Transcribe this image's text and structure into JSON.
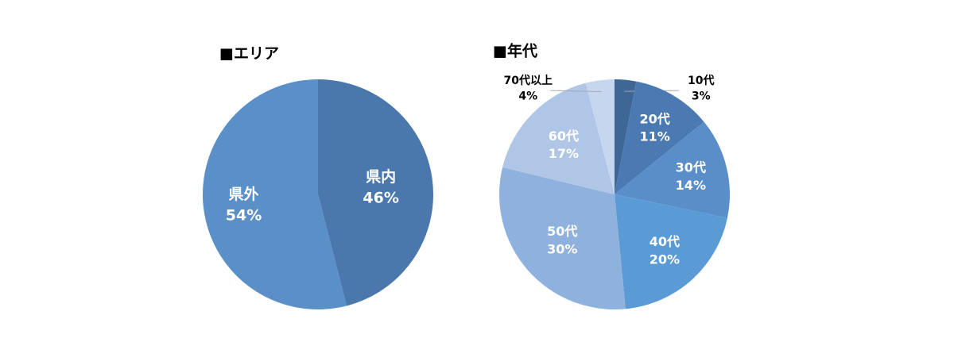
{
  "chart_data": [
    {
      "type": "pie",
      "title": "■エリア",
      "categories": [
        "県内",
        "県外"
      ],
      "values": [
        46,
        54
      ],
      "value_labels": [
        "46%",
        "54%"
      ],
      "colors": [
        "#4a78ad",
        "#5a8fc8"
      ]
    },
    {
      "type": "pie",
      "title": "■年代",
      "categories": [
        "10代",
        "20代",
        "30代",
        "40代",
        "50代",
        "60代",
        "70代以上"
      ],
      "values": [
        3,
        11,
        14,
        20,
        30,
        17,
        4
      ],
      "value_labels": [
        "3%",
        "11%",
        "14%",
        "20%",
        "30%",
        "17%",
        "4%"
      ],
      "colors": [
        "#3f6796",
        "#4b7ab3",
        "#5a8ec8",
        "#5b9bd5",
        "#8fb1de",
        "#b0c6e6",
        "#c6d6ef"
      ]
    }
  ]
}
